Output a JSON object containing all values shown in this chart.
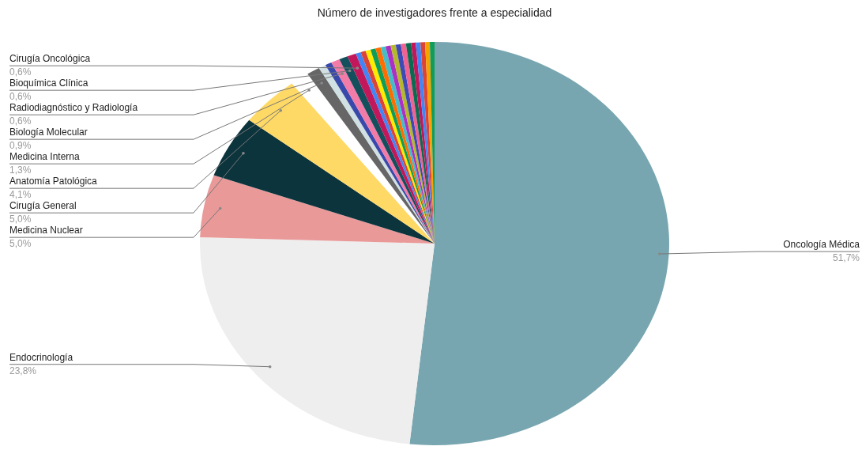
{
  "chart_data": {
    "type": "pie",
    "title": "Número de investigadores frente a especialidad",
    "categories": [
      "Oncología Médica",
      "Endocrinología",
      "Medicina Nuclear",
      "Cirugía General",
      "Anatomía Patológica",
      "Medicina Interna",
      "Biología Molecular",
      null,
      null,
      "Radiodiagnóstico y Radiología",
      "Bioquímica Clínica",
      "Cirugía Oncológica",
      null,
      null,
      null,
      null,
      null,
      null,
      null,
      null,
      null,
      null,
      null,
      null,
      null,
      null,
      null,
      null
    ],
    "values": [
      51.7,
      23.8,
      5.0,
      5.0,
      4.1,
      1.3,
      0.9,
      0.5,
      0.45,
      0.6,
      0.6,
      0.6,
      0.35,
      0.35,
      0.35,
      0.35,
      0.35,
      0.35,
      0.35,
      0.35,
      0.35,
      0.35,
      0.35,
      0.32,
      0.32,
      0.32,
      0.32,
      0.32
    ],
    "value_labels": [
      "51,7%",
      "23,8%",
      "5,0%",
      "5,0%",
      "4,1%",
      "1,3%",
      "0,9%",
      null,
      null,
      "0,6%",
      "0,6%",
      "0,6%",
      null,
      null,
      null,
      null,
      null,
      null,
      null,
      null,
      null,
      null,
      null,
      null,
      null,
      null,
      null,
      null
    ],
    "colors": [
      "#78a6b0",
      "#eeeeee",
      "#ea9999",
      "#0c343d",
      "#ffd966",
      "#ffffff",
      "#666666",
      "#d0e0e3",
      "#3949ab",
      "#f27ba8",
      "#134f5c",
      "#c2185b",
      "#4285f4",
      "#db4437",
      "#ffeb00",
      "#0f9d58",
      "#ff6d00",
      "#46bdc6",
      "#ab30c4",
      "#b5b82c",
      "#3f4bb5",
      "#f06292",
      "#0b6b50",
      "#c2185b",
      "#4285f4",
      "#db4437",
      "#f4a300",
      "#0f9d58"
    ]
  }
}
